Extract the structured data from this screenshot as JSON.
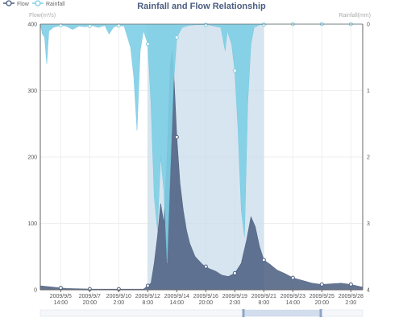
{
  "chart_data": {
    "type": "area",
    "title": "Rainfall and Flow Relationship",
    "legend": [
      "Flow",
      "Rainfall"
    ],
    "legend_position": "top-left",
    "y_left": {
      "label": "Flow(m³/s)",
      "range": [
        0,
        400
      ],
      "ticks": [
        0,
        100,
        200,
        300,
        400
      ]
    },
    "y_right": {
      "label": "Rainfall(mm)",
      "range": [
        0,
        4
      ],
      "inverted": true,
      "ticks": [
        0,
        1,
        2,
        3,
        4
      ]
    },
    "x_ticks": [
      "2009/9/5\n14:00",
      "2009/9/7\n20:00",
      "2009/9/10\n2:00",
      "2009/9/12\n8:00",
      "2009/9/14\n14:00",
      "2009/9/16\n20:00",
      "2009/9/19\n2:00",
      "2009/9/21\n8:00",
      "2009/9/23\n14:00",
      "2009/9/25\n20:00",
      "2009/9/28\n2:00"
    ],
    "x_range": [
      "2009/9/4 0:00",
      "2009/9/29 0:00"
    ],
    "mark_area": {
      "from": "2009/9/12 8:00",
      "to": "2009/9/21 8:00"
    },
    "series": [
      {
        "name": "Flow",
        "color": "#4a5d80",
        "points": [
          [
            "2009/9/4 0:00",
            6
          ],
          [
            "2009/9/5 0:00",
            4
          ],
          [
            "2009/9/6 0:00",
            2
          ],
          [
            "2009/9/8 0:00",
            1
          ],
          [
            "2009/9/10 0:00",
            1
          ],
          [
            "2009/9/12 0:00",
            1
          ],
          [
            "2009/9/12 14:00",
            10
          ],
          [
            "2009/9/12 20:00",
            40
          ],
          [
            "2009/9/13 2:00",
            80
          ],
          [
            "2009/9/13 8:00",
            130
          ],
          [
            "2009/9/13 14:00",
            100
          ],
          [
            "2009/9/13 20:00",
            200
          ],
          [
            "2009/9/14 2:00",
            340
          ],
          [
            "2009/9/14 6:00",
            360
          ],
          [
            "2009/9/14 10:00",
            300
          ],
          [
            "2009/9/14 14:00",
            230
          ],
          [
            "2009/9/14 20:00",
            160
          ],
          [
            "2009/9/15 2:00",
            120
          ],
          [
            "2009/9/15 8:00",
            90
          ],
          [
            "2009/9/15 14:00",
            70
          ],
          [
            "2009/9/16 0:00",
            50
          ],
          [
            "2009/9/16 14:00",
            38
          ],
          [
            "2009/9/17 2:00",
            32
          ],
          [
            "2009/9/17 14:00",
            28
          ],
          [
            "2009/9/18 2:00",
            22
          ],
          [
            "2009/9/18 14:00",
            20
          ],
          [
            "2009/9/19 2:00",
            25
          ],
          [
            "2009/9/19 14:00",
            40
          ],
          [
            "2009/9/20 0:00",
            75
          ],
          [
            "2009/9/20 8:00",
            110
          ],
          [
            "2009/9/20 16:00",
            95
          ],
          [
            "2009/9/21 0:00",
            65
          ],
          [
            "2009/9/21 8:00",
            45
          ],
          [
            "2009/9/21 20:00",
            38
          ],
          [
            "2009/9/22 8:00",
            30
          ],
          [
            "2009/9/23 0:00",
            24
          ],
          [
            "2009/9/23 14:00",
            18
          ],
          [
            "2009/9/24 8:00",
            14
          ],
          [
            "2009/9/25 2:00",
            10
          ],
          [
            "2009/9/25 20:00",
            8
          ],
          [
            "2009/9/26 14:00",
            9
          ],
          [
            "2009/9/27 8:00",
            10
          ],
          [
            "2009/9/28 2:00",
            8
          ],
          [
            "2009/9/29 0:00",
            4
          ]
        ]
      },
      {
        "name": "Rainfall",
        "color": "#7fcfe6",
        "points": [
          [
            "2009/9/4 0:00",
            0
          ],
          [
            "2009/9/4 4:00",
            0.15
          ],
          [
            "2009/9/4 8:00",
            0.2
          ],
          [
            "2009/9/4 12:00",
            0.6
          ],
          [
            "2009/9/4 16:00",
            0.1
          ],
          [
            "2009/9/4 20:00",
            0.08
          ],
          [
            "2009/9/5 0:00",
            0.05
          ],
          [
            "2009/9/5 14:00",
            0.02
          ],
          [
            "2009/9/6 0:00",
            0.03
          ],
          [
            "2009/9/6 12:00",
            0.08
          ],
          [
            "2009/9/7 0:00",
            0.03
          ],
          [
            "2009/9/7 12:00",
            0.04
          ],
          [
            "2009/9/8 0:00",
            0.02
          ],
          [
            "2009/9/8 12:00",
            0.05
          ],
          [
            "2009/9/9 0:00",
            0.02
          ],
          [
            "2009/9/9 8:00",
            0.15
          ],
          [
            "2009/9/9 16:00",
            0.05
          ],
          [
            "2009/9/10 0:00",
            0.02
          ],
          [
            "2009/9/10 12:00",
            0.03
          ],
          [
            "2009/9/11 0:00",
            0.35
          ],
          [
            "2009/9/11 6:00",
            0.8
          ],
          [
            "2009/9/11 12:00",
            1.6
          ],
          [
            "2009/9/11 18:00",
            0.4
          ],
          [
            "2009/9/12 0:00",
            0.1
          ],
          [
            "2009/9/12 8:00",
            0.3
          ],
          [
            "2009/9/12 14:00",
            1.2
          ],
          [
            "2009/9/12 20:00",
            2.6
          ],
          [
            "2009/9/13 2:00",
            3.1
          ],
          [
            "2009/9/13 8:00",
            2.0
          ],
          [
            "2009/9/13 14:00",
            2.5
          ],
          [
            "2009/9/13 20:00",
            3.6
          ],
          [
            "2009/9/14 2:00",
            2.2
          ],
          [
            "2009/9/14 8:00",
            0.9
          ],
          [
            "2009/9/14 14:00",
            0.2
          ],
          [
            "2009/9/15 0:00",
            0.05
          ],
          [
            "2009/9/15 12:00",
            0.02
          ],
          [
            "2009/9/16 0:00",
            0.01
          ],
          [
            "2009/9/17 0:00",
            0.01
          ],
          [
            "2009/9/18 0:00",
            0.05
          ],
          [
            "2009/9/18 8:00",
            0.4
          ],
          [
            "2009/9/18 12:00",
            0.1
          ],
          [
            "2009/9/18 20:00",
            0.3
          ],
          [
            "2009/9/19 2:00",
            0.7
          ],
          [
            "2009/9/19 8:00",
            1.6
          ],
          [
            "2009/9/19 14:00",
            2.8
          ],
          [
            "2009/9/19 20:00",
            3.2
          ],
          [
            "2009/9/20 2:00",
            1.2
          ],
          [
            "2009/9/20 8:00",
            0.3
          ],
          [
            "2009/9/20 14:00",
            0.05
          ],
          [
            "2009/9/21 0:00",
            0.01
          ],
          [
            "2009/9/22 0:00",
            0
          ],
          [
            "2009/9/29 0:00",
            0
          ]
        ]
      }
    ],
    "data_zoom": {
      "start": 0.63,
      "end": 0.87
    }
  }
}
